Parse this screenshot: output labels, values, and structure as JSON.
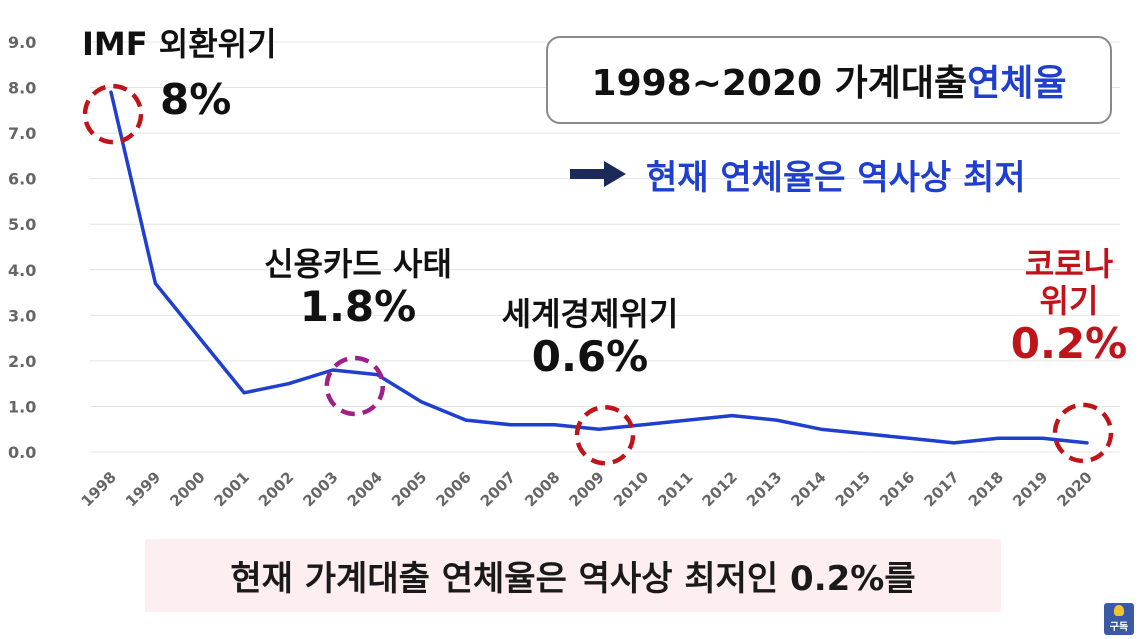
{
  "chart_data": {
    "type": "line",
    "x": [
      "1998",
      "1999",
      "2000",
      "2001",
      "2002",
      "2003",
      "2004",
      "2005",
      "2006",
      "2007",
      "2008",
      "2009",
      "2010",
      "2011",
      "2012",
      "2013",
      "2014",
      "2015",
      "2016",
      "2017",
      "2018",
      "2019",
      "2020"
    ],
    "series": [
      {
        "values": [
          7.9,
          3.7,
          2.5,
          1.3,
          1.5,
          1.8,
          1.7,
          1.1,
          0.7,
          0.6,
          0.6,
          0.5,
          0.6,
          0.7,
          0.8,
          0.7,
          0.5,
          0.4,
          0.3,
          0.2,
          0.3,
          0.3,
          0.2
        ],
        "color": "#1f3fcf"
      }
    ],
    "ylim": [
      0,
      9
    ],
    "yticks": [
      "0.0",
      "1.0",
      "2.0",
      "3.0",
      "4.0",
      "5.0",
      "6.0",
      "7.0",
      "8.0",
      "9.0"
    ],
    "grid": true,
    "title": "1998~2020 가계대출 ",
    "title_accent": "연체율"
  },
  "subtitle": "현재 연체율은 역사상 최저",
  "annotations": {
    "imf": {
      "label": "IMF 외환위기",
      "value": "8%"
    },
    "card": {
      "label": "신용카드 사태",
      "value": "1.8%"
    },
    "gfc": {
      "label": "세계경제위기",
      "value": "0.6%"
    },
    "corona": {
      "label1": "코로나",
      "label2": "위기",
      "value": "0.2%"
    }
  },
  "caption": "현재 가계대출 연체율은 역사상 최저인 0.2%를",
  "badge": "구독",
  "colors": {
    "line": "#1f3fcf",
    "accent": "#1f3fcf",
    "red": "#c0141b",
    "purple": "#a0208a",
    "grid": "#e4e4e4",
    "axis_text": "#666666"
  }
}
